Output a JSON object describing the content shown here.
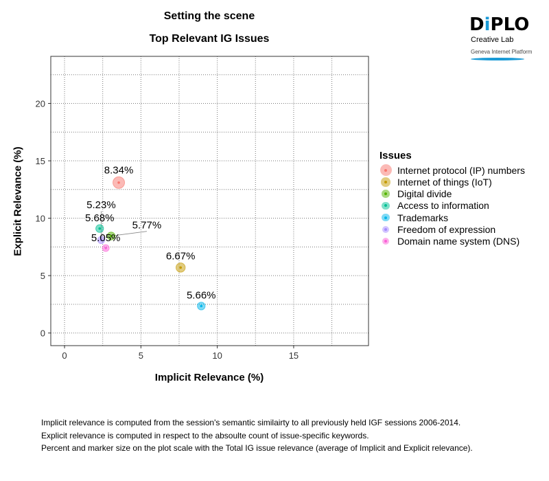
{
  "title": "Setting the scene",
  "subtitle": "Top Relevant IG Issues",
  "logo": {
    "brand": "DiPLO",
    "line1": "Creative Lab",
    "line2": "Geneva Internet Platform"
  },
  "notes": [
    "Implicit relevance is computed from the session's semantic similairty to all previously held IGF sessions 2006-2014.",
    "Explicit relevance is computed in respect to the absoulte count of issue-specific keywords.",
    "Percent and marker size on the plot scale with the Total IG issue relevance (average of Implicit and Explicit relevance)."
  ],
  "chart_data": {
    "type": "scatter",
    "xlabel": "Implicit Relevance (%)",
    "ylabel": "Explicit Relevance (%)",
    "xlim": [
      -0.9,
      19.9
    ],
    "ylim": [
      -1.1,
      24.1
    ],
    "xticks": [
      0,
      5,
      10,
      15
    ],
    "yticks": [
      0,
      5,
      10,
      15,
      20
    ],
    "grid": true,
    "legend": {
      "title": "Issues",
      "placement": "right"
    },
    "series": [
      {
        "name": "Internet protocol (IP) numbers",
        "x": 3.55,
        "y": 13.1,
        "label": "8.34%",
        "color": "#F8766D"
      },
      {
        "name": "Internet of things (IoT)",
        "x": 7.6,
        "y": 5.7,
        "label": "6.67%",
        "color": "#C49A00"
      },
      {
        "name": "Digital divide",
        "x": 3.05,
        "y": 8.45,
        "label": "5.77%",
        "color": "#53B400"
      },
      {
        "name": "Access to information",
        "x": 2.3,
        "y": 9.1,
        "label": "5.68%",
        "color": "#00C094"
      },
      {
        "name": "Trademarks",
        "x": 8.95,
        "y": 2.35,
        "label": "5.66%",
        "color": "#00B6EB"
      },
      {
        "name": "Freedom of expression",
        "x": 2.4,
        "y": 8.1,
        "label": "5.23%",
        "color": "#A58AFF"
      },
      {
        "name": "Domain name system (DNS)",
        "x": 2.7,
        "y": 7.4,
        "label": "5.05%",
        "color": "#FB61D7"
      }
    ]
  }
}
